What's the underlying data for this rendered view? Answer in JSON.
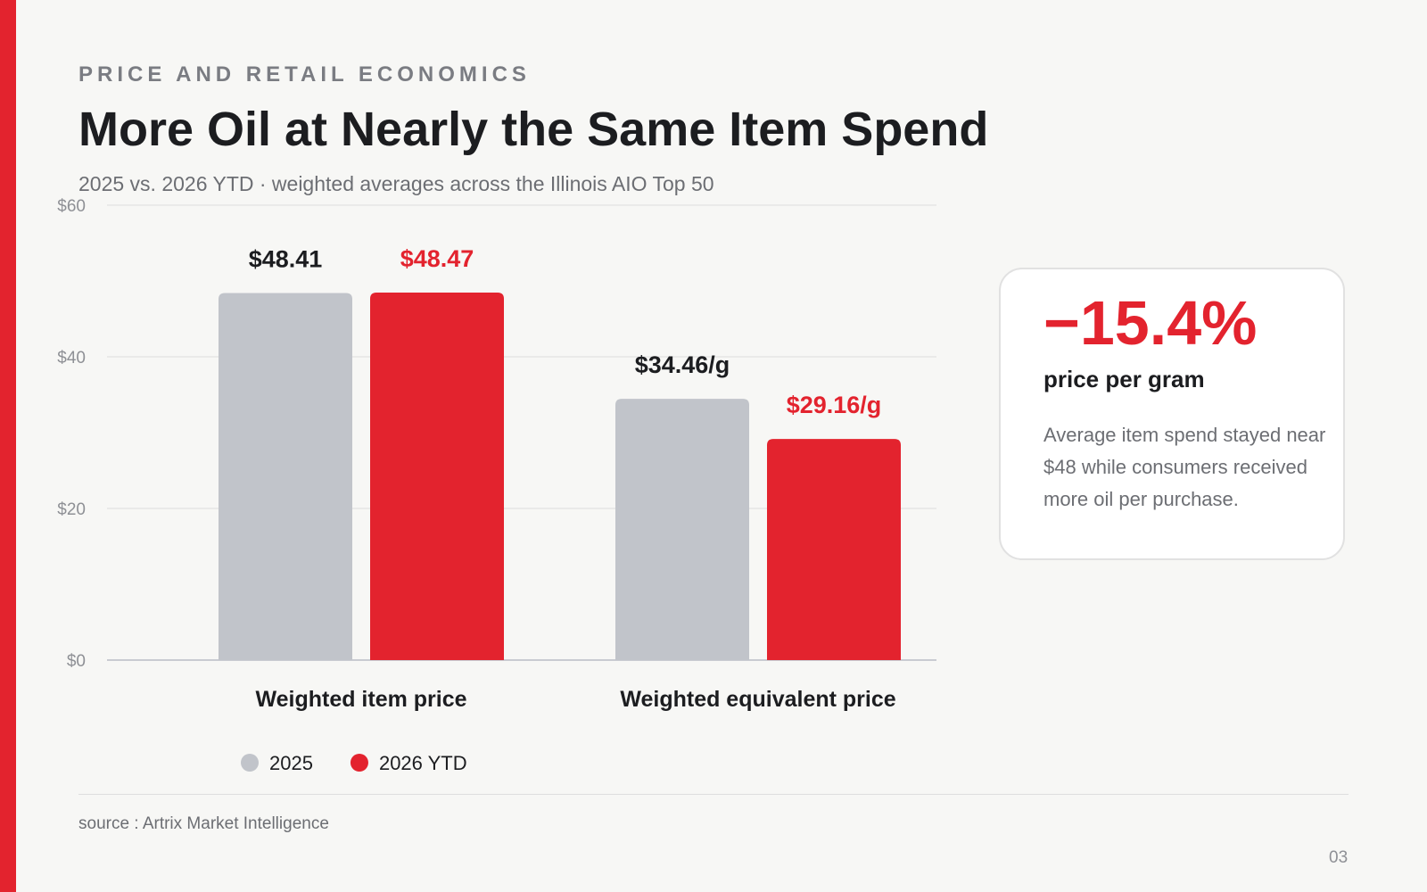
{
  "header": {
    "eyebrow": "PRICE AND RETAIL ECONOMICS",
    "title": "More Oil at Nearly the Same Item Spend",
    "subtitle": "2025 vs. 2026 YTD · weighted averages across the Illinois AIO Top 50"
  },
  "chart_data": {
    "type": "bar",
    "categories": [
      "Weighted item price",
      "Weighted equivalent price"
    ],
    "series": [
      {
        "name": "2025",
        "values": [
          48.41,
          34.46
        ],
        "labels": [
          "$48.41",
          "$34.46/g"
        ],
        "color": "#c1c4ca",
        "label_color": "#1c1d20"
      },
      {
        "name": "2026 YTD",
        "values": [
          48.47,
          29.16
        ],
        "labels": [
          "$48.47",
          "$29.16/g"
        ],
        "color": "#e3232e",
        "label_color": "#e3232e"
      }
    ],
    "yticks": [
      0,
      20,
      40,
      60
    ],
    "ytick_labels": [
      "$0",
      "$20",
      "$40",
      "$60"
    ],
    "ylim": [
      0,
      60
    ],
    "grid": true,
    "legend_position": "bottom-left"
  },
  "callout": {
    "value": "−15.4%",
    "label": "price per gram",
    "text": "Average item spend stayed near $48 while consumers received more oil per purchase."
  },
  "footer": {
    "source": "source : Artrix Market Intelligence",
    "page": "03"
  }
}
